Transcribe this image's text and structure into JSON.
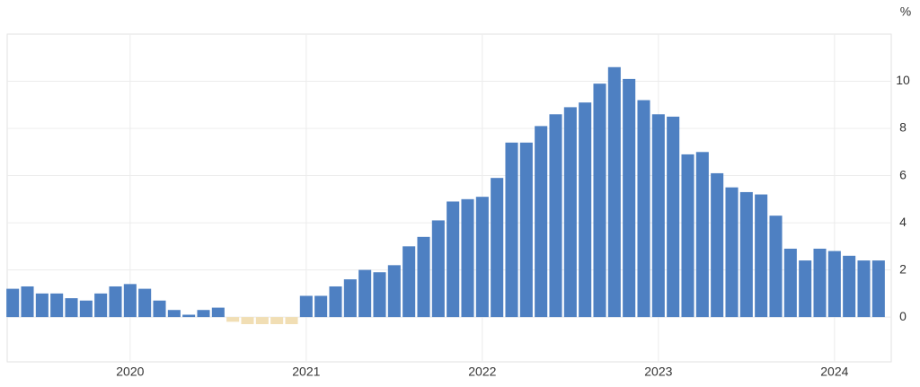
{
  "chart_data": {
    "type": "bar",
    "y_label": "%",
    "categories": [
      null,
      null,
      null,
      null,
      null,
      null,
      null,
      null,
      "2020",
      null,
      null,
      null,
      null,
      null,
      null,
      null,
      null,
      null,
      null,
      null,
      "2021",
      null,
      null,
      null,
      null,
      null,
      null,
      null,
      null,
      null,
      null,
      null,
      "2022",
      null,
      null,
      null,
      null,
      null,
      null,
      null,
      null,
      null,
      null,
      null,
      "2023",
      null,
      null,
      null,
      null,
      null,
      null,
      null,
      null,
      null,
      null,
      null,
      "2024",
      null,
      null,
      null
    ],
    "values": [
      1.2,
      1.3,
      1.0,
      1.0,
      0.8,
      0.7,
      1.0,
      1.3,
      1.4,
      1.2,
      0.7,
      0.3,
      0.1,
      0.3,
      0.4,
      -0.2,
      -0.3,
      -0.3,
      -0.3,
      -0.3,
      0.9,
      0.9,
      1.3,
      1.6,
      2.0,
      1.9,
      2.2,
      3.0,
      3.4,
      4.1,
      4.9,
      5.0,
      5.1,
      5.9,
      7.4,
      7.4,
      8.1,
      8.6,
      8.9,
      9.1,
      9.9,
      10.6,
      10.1,
      9.2,
      8.6,
      8.5,
      6.9,
      7.0,
      6.1,
      5.5,
      5.3,
      5.2,
      4.3,
      2.9,
      2.4,
      2.9,
      2.8,
      2.6,
      2.4,
      2.4
    ],
    "color": "#4e80c2",
    "negative_color": "#f1deb4",
    "ylim": [
      -1.9,
      12
    ],
    "yticks": [
      0,
      2,
      4,
      6,
      8,
      10
    ],
    "grid": true
  }
}
